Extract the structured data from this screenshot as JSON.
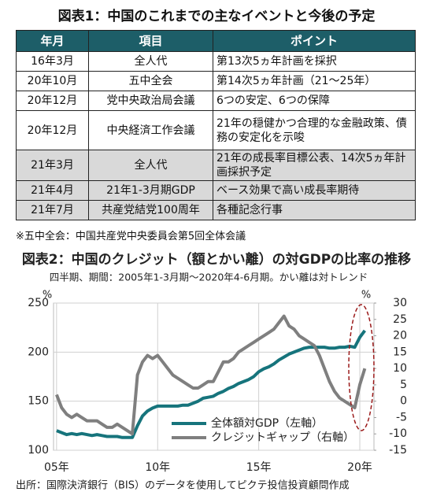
{
  "figure1": {
    "title": "図表1：中国のこれまでの主なイベントと今後の予定",
    "table": {
      "header": [
        "年月",
        "項目",
        "ポイント"
      ],
      "rows": [
        [
          "16年3月",
          "全人代",
          "第13次5ヵ年計画を採択"
        ],
        [
          "20年10月",
          "五中全会",
          "第14次5ヵ年計画（21～25年）"
        ],
        [
          "20年12月",
          "党中央政治局会議",
          "6つの安定、6つの保障"
        ],
        [
          "20年12月",
          "中央経済工作会議",
          "21年の穏健かつ合理的な金融政策、債務の安定化を示唆"
        ],
        [
          "21年3月",
          "全人代",
          "21年の成長率目標公表、14次5ヵ年計画採択予定"
        ],
        [
          "21年4月",
          "21年1-3月期GDP",
          "ベース効果で高い成長率期待"
        ],
        [
          "21年7月",
          "共産党結党100周年",
          "各種記念行事"
        ]
      ]
    },
    "note": "※五中全会：中国共産党中央委員会第5回全体会議"
  },
  "chart_data": {
    "type": "line",
    "title": "図表2：中国のクレジット（額とかい離）の対GDPの比率の推移",
    "subtitle": "四半期、期間：2005年1-3月期～2020年4-6月期。かい離は対トレンド",
    "y_unit": "%",
    "y2_unit": "%",
    "x": [
      2005,
      2005.25,
      2005.5,
      2005.75,
      2006,
      2006.25,
      2006.5,
      2006.75,
      2007,
      2007.25,
      2007.5,
      2007.75,
      2008,
      2008.25,
      2008.5,
      2008.75,
      2009,
      2009.25,
      2009.5,
      2009.75,
      2010,
      2010.25,
      2010.5,
      2010.75,
      2011,
      2011.25,
      2011.5,
      2011.75,
      2012,
      2012.25,
      2012.5,
      2012.75,
      2013,
      2013.25,
      2013.5,
      2013.75,
      2014,
      2014.25,
      2014.5,
      2014.75,
      2015,
      2015.25,
      2015.5,
      2015.75,
      2016,
      2016.25,
      2016.5,
      2016.75,
      2017,
      2017.25,
      2017.5,
      2017.75,
      2018,
      2018.25,
      2018.5,
      2018.75,
      2019,
      2019.25,
      2019.5,
      2019.75,
      2020,
      2020.25
    ],
    "xlim": [
      2004.85,
      2020.7
    ],
    "xticks": [
      {
        "value": 2005,
        "label": "05年"
      },
      {
        "value": 2010,
        "label": "10年"
      },
      {
        "value": 2015,
        "label": "15年"
      },
      {
        "value": 2020,
        "label": "20年"
      }
    ],
    "ylim": [
      100,
      250
    ],
    "yticks": [
      100,
      150,
      200,
      250
    ],
    "y2lim": [
      -15,
      30
    ],
    "y2ticks": [
      -15,
      -10,
      -5,
      0,
      5,
      10,
      15,
      20,
      25,
      30
    ],
    "grid": true,
    "legend": "lower right",
    "series": [
      {
        "name": "全体額対GDP（左軸）",
        "color": "#16747c",
        "values": [
          120,
          118,
          116,
          117,
          116,
          117,
          116,
          115,
          116,
          115,
          114,
          114,
          114,
          113,
          113,
          113,
          125,
          135,
          140,
          143,
          145,
          145,
          145,
          145,
          145,
          146,
          146,
          148,
          150,
          153,
          154,
          155,
          158,
          160,
          163,
          165,
          168,
          170,
          172,
          175,
          180,
          183,
          185,
          188,
          192,
          195,
          198,
          200,
          202,
          204,
          205,
          205,
          205,
          205,
          204,
          204,
          205,
          205,
          206,
          205,
          215,
          222
        ]
      },
      {
        "name": "クレジットギャップ（右軸）",
        "color": "#7f7f7f",
        "axis": "y2",
        "values": [
          2,
          -2,
          -4,
          -5,
          -4,
          -5,
          -6,
          -6,
          -6,
          -7,
          -8,
          -8,
          -7,
          -8,
          -9,
          -10,
          8,
          12,
          14,
          13,
          14,
          12,
          10,
          8,
          7,
          6,
          5,
          4,
          4,
          5,
          6,
          6,
          9,
          12,
          12,
          13,
          15,
          16,
          17,
          18,
          19,
          20,
          21,
          22,
          24,
          26,
          23,
          22,
          20,
          19,
          18,
          17,
          14,
          10,
          6,
          3,
          1,
          0,
          -1,
          -2,
          5,
          10
        ]
      }
    ]
  },
  "source": "出所：国際決済銀行（BIS）のデータを使用してピクテ投信投資顧問作成"
}
